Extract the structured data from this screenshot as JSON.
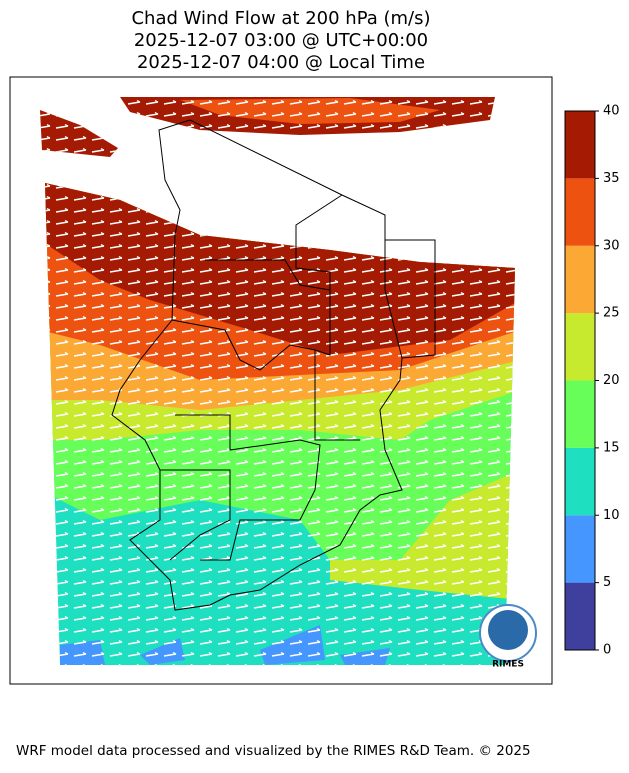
{
  "title": [
    "Chad Wind Flow at 200 hPa (m/s)",
    "2025-12-07 03:00 @ UTC+00:00",
    "2025-12-07 04:00 @ Local Time"
  ],
  "colorbar": {
    "ticks": [
      0,
      5,
      10,
      15,
      20,
      25,
      30,
      35,
      40
    ],
    "colors": [
      "#3f3f9e",
      "#4596fe",
      "#1ee0c0",
      "#67fe5a",
      "#c8ea2e",
      "#fba835",
      "#ee5211",
      "#a51a02"
    ]
  },
  "logo": "RIMES",
  "footer": "WRF model data processed and visualized by the RIMES R&D Team. © 2025"
}
